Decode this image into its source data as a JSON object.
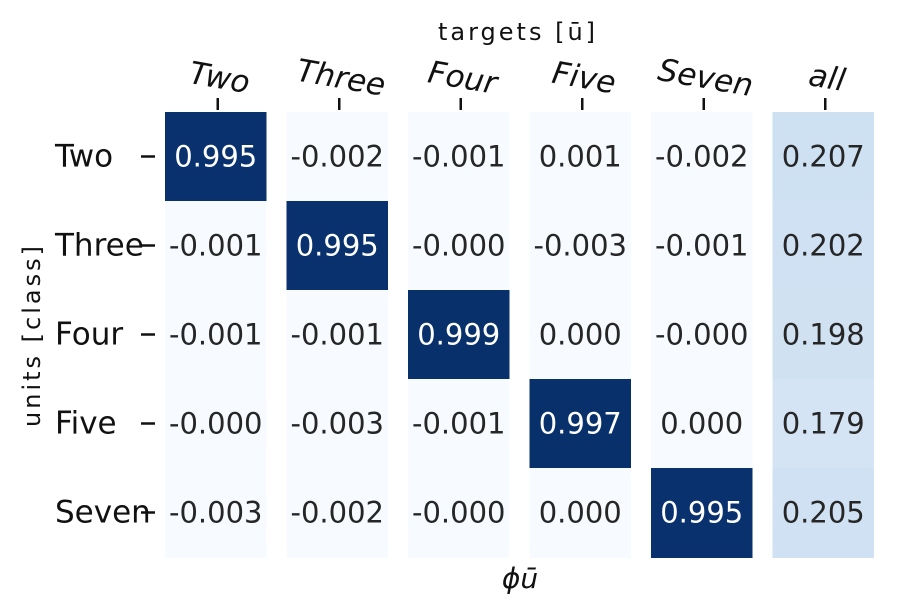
{
  "chart_data": {
    "type": "heatmap",
    "title": "",
    "xlabel_top": "targets [ū]",
    "xlabel_bottom": "ϕū",
    "ylabel": "units [class]",
    "columns": [
      "Two",
      "Three",
      "Four",
      "Five",
      "Seven",
      "all"
    ],
    "rows": [
      "Two",
      "Three",
      "Four",
      "Five",
      "Seven"
    ],
    "values": [
      [
        0.995,
        -0.002,
        -0.001,
        0.001,
        -0.002,
        0.207
      ],
      [
        -0.001,
        0.995,
        -0.0,
        -0.003,
        -0.001,
        0.202
      ],
      [
        -0.001,
        -0.001,
        0.999,
        0.0,
        -0.0,
        0.198
      ],
      [
        -0.0,
        -0.003,
        -0.001,
        0.997,
        0.0,
        0.179
      ],
      [
        -0.003,
        -0.002,
        -0.0,
        0.0,
        0.995,
        0.205
      ]
    ],
    "value_labels": [
      [
        "0.995",
        "-0.002",
        "-0.001",
        "0.001",
        "-0.002",
        "0.207"
      ],
      [
        "-0.001",
        "0.995",
        "-0.000",
        "-0.003",
        "-0.001",
        "0.202"
      ],
      [
        "-0.001",
        "-0.001",
        "0.999",
        "0.000",
        "-0.000",
        "0.198"
      ],
      [
        "-0.000",
        "-0.003",
        "-0.001",
        "0.997",
        "0.000",
        "0.179"
      ],
      [
        "-0.003",
        "-0.002",
        "-0.000",
        "0.000",
        "0.995",
        "0.205"
      ]
    ],
    "colormap": "Blues",
    "colors": {
      "low": "#f7fbff",
      "high": "#08306b",
      "text_dark": "#262626",
      "text_light": "#ffffff"
    },
    "grid": false,
    "legend": "none"
  }
}
